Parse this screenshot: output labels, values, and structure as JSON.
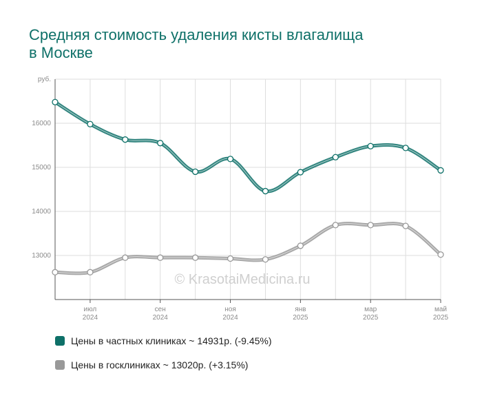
{
  "chart_data": {
    "type": "line",
    "title_lines": [
      "Средняя стоимость удаления кисты влагалища",
      "в Москве"
    ],
    "ylabel": "руб.",
    "ylim": [
      12000,
      17000
    ],
    "yticks": [
      13000,
      14000,
      15000,
      16000
    ],
    "x_tick_labels": [
      {
        "month": "июл",
        "year": "2024"
      },
      {
        "month": "сен",
        "year": "2024"
      },
      {
        "month": "ноя",
        "year": "2024"
      },
      {
        "month": "янв",
        "year": "2025"
      },
      {
        "month": "мар",
        "year": "2025"
      },
      {
        "month": "май",
        "year": "2025"
      }
    ],
    "grid": true,
    "watermark": "© KrasotaiMedicina.ru",
    "series": [
      {
        "name": "Цены в частных клиниках",
        "color": "#0e7068",
        "legend_text": "Цены в частных клиниках ~ 14931р. (-9.45%)",
        "values": [
          16480,
          15980,
          15630,
          15550,
          14900,
          15190,
          14460,
          14890,
          15230,
          15480,
          15440,
          14931
        ]
      },
      {
        "name": "Цены в госклиниках",
        "color": "#999999",
        "legend_text": "Цены в госклиниках ~ 13020р. (+3.15%)",
        "values": [
          12620,
          12620,
          12950,
          12950,
          12950,
          12930,
          12910,
          13220,
          13690,
          13690,
          13670,
          13020
        ]
      }
    ]
  }
}
